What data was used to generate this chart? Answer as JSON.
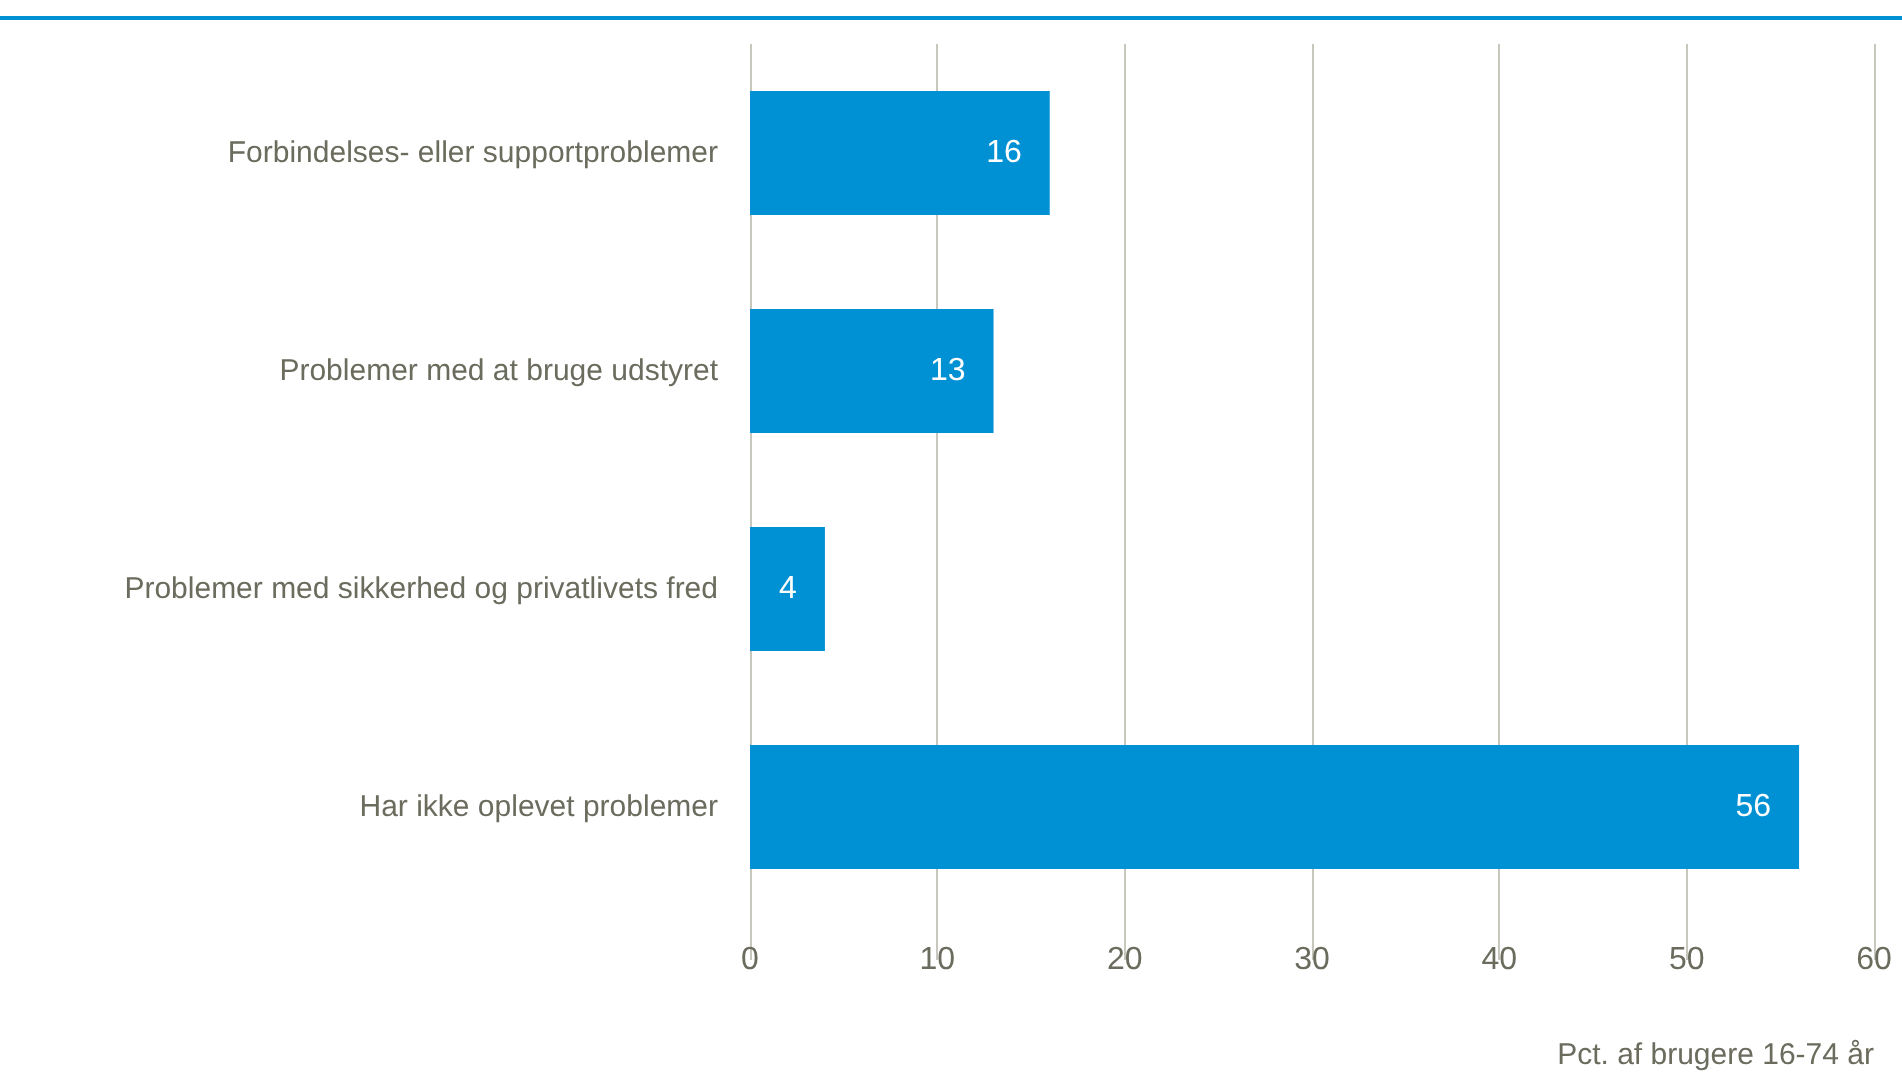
{
  "chart_data": {
    "type": "bar",
    "orientation": "horizontal",
    "categories": [
      "Forbindelses- eller supportproblemer",
      "Problemer med at bruge udstyret",
      "Problemer med sikkerhed og privatlivets fred",
      "Har ikke oplevet problemer"
    ],
    "values": [
      16,
      13,
      4,
      56
    ],
    "color": "#0091d5",
    "xlim": [
      0,
      60
    ],
    "xticks": [
      0,
      10,
      20,
      30,
      40,
      50,
      60
    ],
    "xlabel": "Pct. af brugere 16-74 år",
    "grid": "x",
    "data_labels": true
  }
}
